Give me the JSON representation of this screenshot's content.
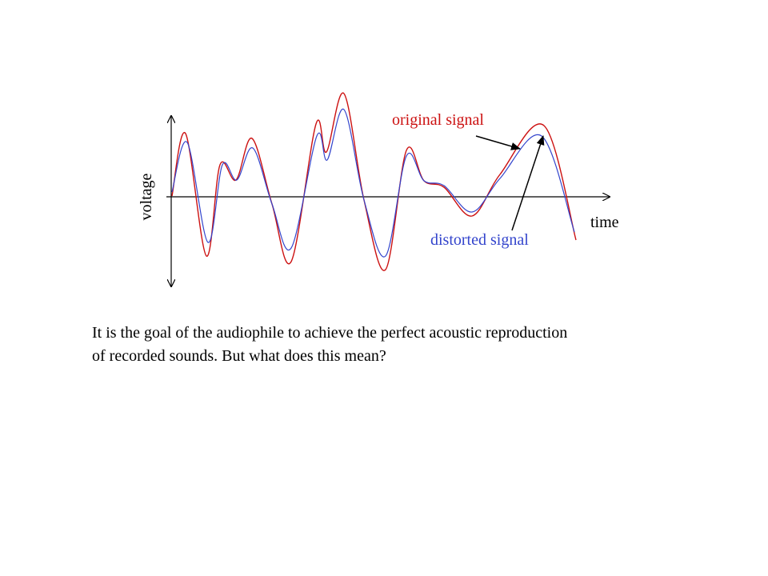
{
  "diagram": {
    "y_axis_label": "voltage",
    "x_axis_label": "time",
    "original_label": "original signal",
    "distorted_label": "distorted signal"
  },
  "caption": {
    "lines": [
      "It is the goal of the audiophile to achieve the perfect acoustic reproduction",
      "of recorded sounds. But what does this mean?"
    ]
  }
}
